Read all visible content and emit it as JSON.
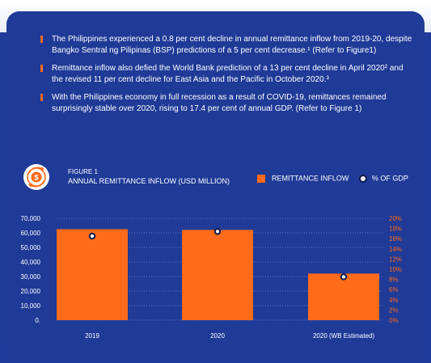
{
  "bullets": [
    "The Philippines experienced a 0.8 per cent decline in annual remittance inflow from 2019-20, despite Bangko Sentral ng Pilipinas (BSP) predictions of a 5 per cent decrease.¹ (Refer to Figure1)",
    "Remittance inflow also defied the World Bank prediction of a 13 per cent decline in April 2020² and the revised 11 per cent decline for East Asia and the Pacific in October 2020.³",
    "With the Philippines economy in full recession as a result of COVID-19, remittances remained surprisingly stable over 2020, rising to 17.4 per cent of annual GDP. (Refer to Figure 1)"
  ],
  "figure": {
    "number": "FIGURE 1",
    "icon": "coin-exchange-icon"
  },
  "colors": {
    "accent": "#ff6b1a",
    "background": "#1f3a97"
  },
  "chart_data": {
    "type": "bar",
    "title": "ANNUAL REMITTANCE INFLOW (USD MILLION)",
    "categories": [
      "2019",
      "2020",
      "2020 (WB Estimated)"
    ],
    "series": [
      {
        "name": "REMITTANCE INFLOW",
        "type": "bar",
        "axis": "left",
        "values": [
          62500,
          62000,
          32000
        ]
      },
      {
        "name": "% OF GDP",
        "type": "scatter",
        "axis": "right",
        "values": [
          16.5,
          17.4,
          8.5
        ]
      }
    ],
    "y_left": {
      "min": 0,
      "max": 70000,
      "ticks": [
        "70,000",
        "60,000",
        "50,000",
        "40,000",
        "30,000",
        "20,000",
        "10,000",
        "0."
      ]
    },
    "y_right": {
      "min": 0,
      "max": 20,
      "ticks": [
        "20%",
        "18%",
        "16%",
        "14%",
        "12%",
        "10%",
        "8%",
        "6%",
        "4%",
        "2%",
        "0%"
      ]
    },
    "grid": true
  }
}
